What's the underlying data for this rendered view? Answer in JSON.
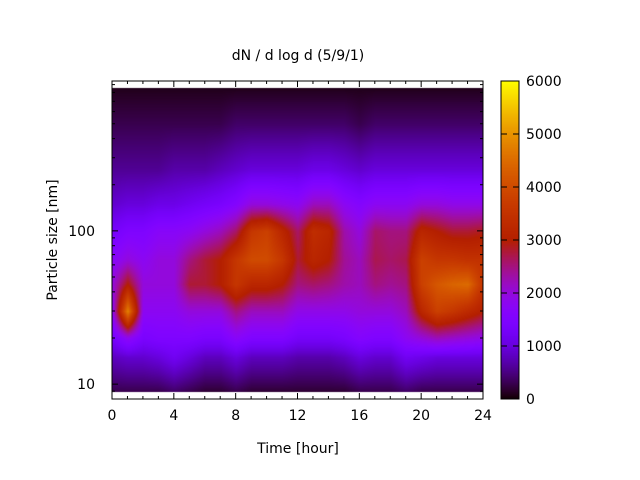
{
  "chart_data": {
    "type": "heatmap",
    "title": "dN / d log d (5/9/1)",
    "xlabel": "Time [hour]",
    "ylabel": "Particle size [nm]",
    "xlim": [
      0,
      24
    ],
    "ylim": [
      8,
      950
    ],
    "yscale": "log",
    "xticks": [
      0,
      4,
      8,
      12,
      16,
      20,
      24
    ],
    "xtick_labels": [
      "0",
      "4",
      "8",
      "12",
      "16",
      "20",
      "24"
    ],
    "yticks": [
      10,
      100
    ],
    "ytick_labels": [
      "10",
      "100"
    ],
    "colorbar": {
      "range": [
        0,
        6000
      ],
      "ticks": [
        0,
        1000,
        2000,
        3000,
        4000,
        5000,
        6000
      ],
      "tick_labels": [
        "0",
        "1000",
        "2000",
        "3000",
        "4000",
        "5000",
        "6000"
      ],
      "palette": "black-purple-red-yellow"
    },
    "times": [
      0,
      1,
      2,
      3,
      4,
      5,
      6,
      7,
      8,
      9,
      10,
      11,
      12,
      13,
      14,
      15,
      16,
      17,
      18,
      19,
      20,
      21,
      22,
      23,
      24
    ],
    "sizes_nm": [
      9,
      15,
      20,
      30,
      45,
      65,
      100,
      150,
      250,
      500,
      860
    ],
    "values": [
      [
        300,
        800,
        1300,
        1800,
        2000,
        1700,
        1300,
        900,
        600,
        300,
        100
      ],
      [
        300,
        900,
        1800,
        4800,
        3000,
        2000,
        1500,
        1000,
        600,
        300,
        100
      ],
      [
        300,
        900,
        1400,
        1800,
        2000,
        1800,
        1500,
        1000,
        600,
        300,
        100
      ],
      [
        300,
        1000,
        1500,
        1800,
        2000,
        2000,
        1700,
        1100,
        600,
        300,
        100
      ],
      [
        400,
        1200,
        1500,
        1800,
        2000,
        2000,
        1700,
        1100,
        700,
        300,
        100
      ],
      [
        300,
        1000,
        1500,
        2000,
        2800,
        2500,
        1800,
        1200,
        700,
        300,
        100
      ],
      [
        200,
        800,
        1400,
        2000,
        2800,
        2800,
        2000,
        1300,
        700,
        300,
        100
      ],
      [
        200,
        800,
        1400,
        2000,
        3000,
        3000,
        2200,
        1400,
        800,
        300,
        100
      ],
      [
        300,
        1000,
        1700,
        2500,
        3600,
        3600,
        2600,
        1600,
        900,
        400,
        100
      ],
      [
        200,
        800,
        1500,
        2200,
        3200,
        4000,
        3600,
        2000,
        1000,
        400,
        100
      ],
      [
        200,
        800,
        1500,
        2200,
        3200,
        4000,
        3800,
        2000,
        1000,
        400,
        100
      ],
      [
        200,
        800,
        1500,
        2200,
        3000,
        3600,
        3200,
        1900,
        1000,
        400,
        100
      ],
      [
        200,
        700,
        1300,
        1900,
        2500,
        2800,
        2600,
        1800,
        1000,
        400,
        100
      ],
      [
        200,
        700,
        1300,
        1900,
        2600,
        3200,
        3400,
        2200,
        1100,
        400,
        100
      ],
      [
        200,
        700,
        1300,
        1900,
        2500,
        3000,
        3200,
        2200,
        1100,
        400,
        100
      ],
      [
        200,
        800,
        1400,
        1900,
        2300,
        2400,
        2300,
        1800,
        1000,
        400,
        100
      ],
      [
        300,
        1000,
        1600,
        2000,
        2200,
        2200,
        2000,
        1600,
        900,
        300,
        100
      ],
      [
        300,
        900,
        1500,
        2000,
        2500,
        2700,
        2600,
        1800,
        1000,
        400,
        100
      ],
      [
        300,
        900,
        1500,
        2000,
        2400,
        2600,
        2500,
        1800,
        1000,
        400,
        100
      ],
      [
        400,
        1200,
        1800,
        2200,
        2500,
        2700,
        2500,
        1800,
        1000,
        400,
        100
      ],
      [
        300,
        1100,
        2000,
        3200,
        3800,
        3800,
        3200,
        2000,
        1000,
        400,
        100
      ],
      [
        300,
        1000,
        2200,
        3800,
        4200,
        3600,
        3000,
        2000,
        1000,
        400,
        100
      ],
      [
        300,
        1000,
        2100,
        3600,
        4400,
        3600,
        2800,
        1900,
        1000,
        400,
        100
      ],
      [
        300,
        1000,
        2000,
        3300,
        4500,
        3500,
        2800,
        1900,
        1000,
        400,
        100
      ],
      [
        300,
        1000,
        1900,
        3000,
        3500,
        3500,
        2900,
        1900,
        1000,
        400,
        100
      ]
    ]
  }
}
